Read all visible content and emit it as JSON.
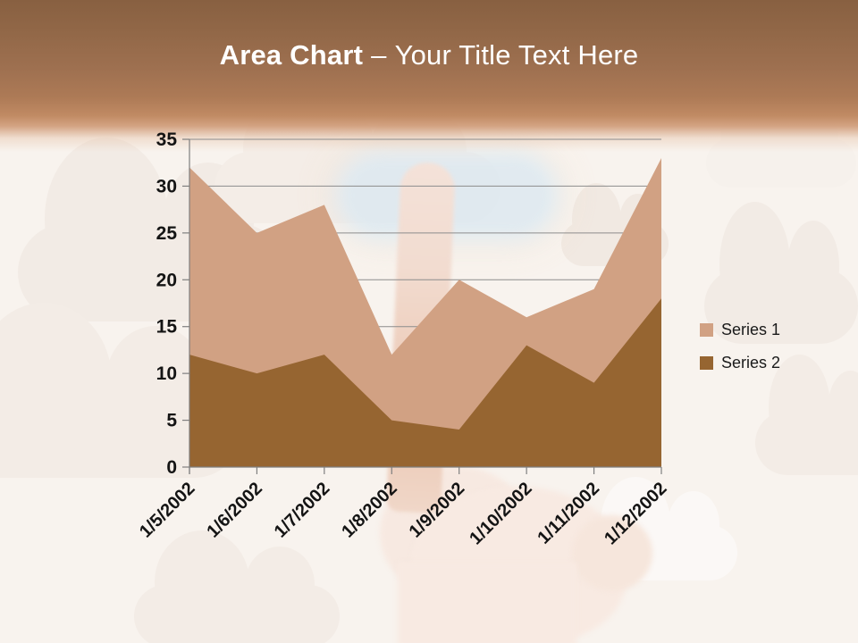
{
  "slide": {
    "title": {
      "primary": "Area Chart",
      "separator": "–",
      "secondary": "Your Title Text Here"
    }
  },
  "chart_data": {
    "type": "area",
    "title": "Area Chart – Your Title Text Here",
    "categories": [
      "1/5/2002",
      "1/6/2002",
      "1/7/2002",
      "1/8/2002",
      "1/9/2002",
      "1/10/2002",
      "1/11/2002",
      "1/12/2002"
    ],
    "series": [
      {
        "name": "Series 1",
        "color": "#d1a183",
        "values": [
          32,
          25,
          28,
          12,
          20,
          16,
          19,
          33
        ]
      },
      {
        "name": "Series 2",
        "color": "#966531",
        "values": [
          12,
          10,
          12,
          5,
          4,
          13,
          9,
          18
        ]
      }
    ],
    "xlabel": "",
    "ylabel": "",
    "ylim": [
      0,
      35
    ],
    "yticks": [
      0,
      5,
      10,
      15,
      20,
      25,
      30,
      35
    ],
    "grid": true,
    "x_label_rotation_deg": 45,
    "legend_position": "right",
    "legend_labels": [
      "Series 1",
      "Series 2"
    ],
    "colors": {
      "axis": "#7f7f7f",
      "gridline": "#8c8c8c",
      "tick_label": "#141414",
      "header_top": "#886041",
      "header_bottom": "#c08a63",
      "background": "#f8f3ee",
      "title_text": "#ffffff"
    }
  }
}
